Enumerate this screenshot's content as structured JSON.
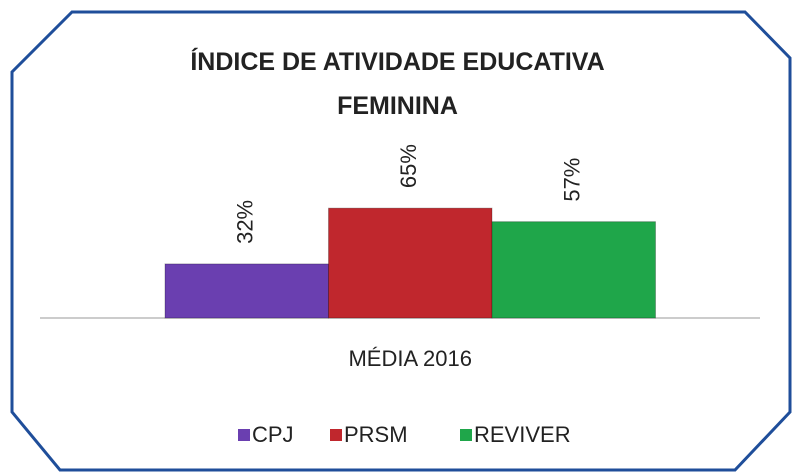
{
  "chart_data": {
    "type": "bar",
    "title": "ÍNDICE DE ATIVIDADE EDUCATIVA FEMININA",
    "categories": [
      "MÉDIA 2016"
    ],
    "series": [
      {
        "name": "CPJ",
        "color": "#6a3fb0",
        "values": [
          32
        ],
        "value_labels": [
          "32%"
        ]
      },
      {
        "name": "PRSM",
        "color": "#c0272d",
        "values": [
          65
        ],
        "value_labels": [
          "65%"
        ]
      },
      {
        "name": "REVIVER",
        "color": "#1fa64a",
        "values": [
          57
        ],
        "value_labels": [
          "57%"
        ]
      }
    ]
  }
}
